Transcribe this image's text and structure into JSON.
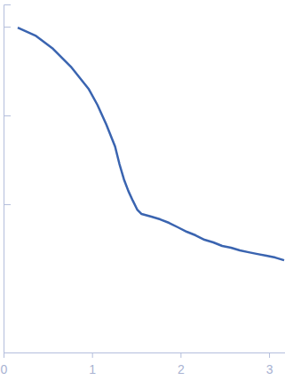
{
  "chart_data": {
    "type": "line",
    "log": "y",
    "tick_labels": "x",
    "color": "#3a64b0",
    "x": [
      0.16,
      0.36,
      0.56,
      0.76,
      0.96,
      1.06,
      1.16,
      1.26,
      1.31,
      1.36,
      1.41,
      1.46,
      1.51,
      1.56,
      1.67,
      1.77,
      1.87,
      1.97,
      2.07,
      2.17,
      2.27,
      2.37,
      2.47,
      2.57,
      2.67,
      2.77,
      2.87,
      2.97,
      3.07,
      3.17
    ],
    "values": [
      97.7,
      79.4,
      56.2,
      35.5,
      20.0,
      13.2,
      7.94,
      4.47,
      2.82,
      1.91,
      1.41,
      1.1,
      0.871,
      0.776,
      0.724,
      0.676,
      0.617,
      0.55,
      0.49,
      0.447,
      0.398,
      0.372,
      0.339,
      0.324,
      0.302,
      0.288,
      0.275,
      0.263,
      0.251,
      0.234
    ],
    "xlim": [
      0,
      3.18
    ],
    "xticks": [
      0,
      1,
      2,
      3
    ],
    "ylim": [
      0.0214,
      178
    ],
    "yticks": [
      1,
      10,
      100
    ]
  }
}
